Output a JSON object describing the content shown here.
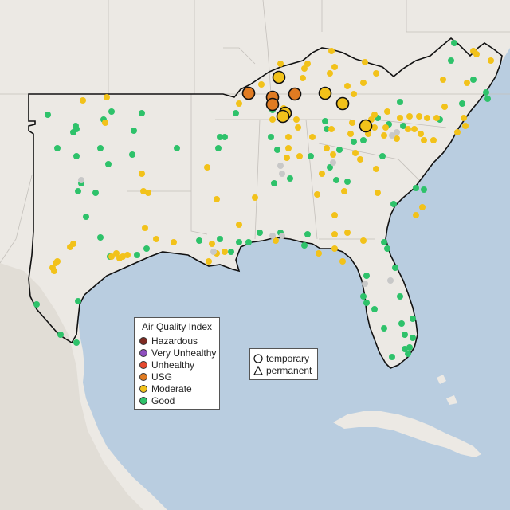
{
  "legend": {
    "title": "Air Quality Index",
    "items": [
      {
        "label": "Hazardous",
        "color": "#7e2b22"
      },
      {
        "label": "Very Unhealthy",
        "color": "#8f4fbf"
      },
      {
        "label": "Unhealthy",
        "color": "#e5492f"
      },
      {
        "label": "USG",
        "color": "#e07b22"
      },
      {
        "label": "Moderate",
        "color": "#f2c21a"
      },
      {
        "label": "Good",
        "color": "#2ec26a"
      }
    ]
  },
  "shape_legend": {
    "temporary": "temporary",
    "permanent": "permanent"
  },
  "colors": {
    "water": "#b9cde0",
    "land": "#ece9e4",
    "unmonitored": "#c8c8c8",
    "boundary": "#111111"
  }
}
